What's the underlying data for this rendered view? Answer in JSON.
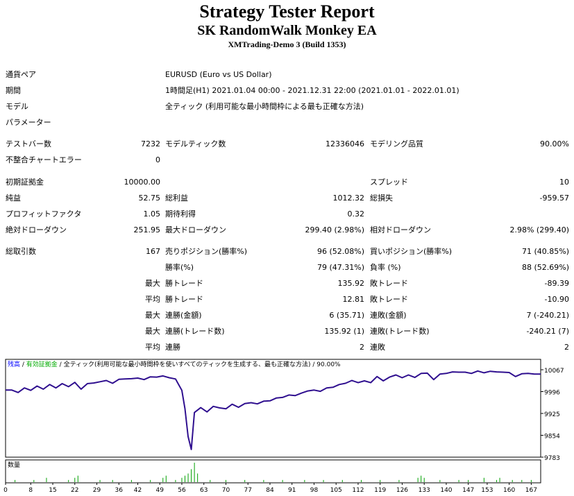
{
  "report": {
    "title": "Strategy Tester Report",
    "ea_name": "SK RandomWalk Monkey EA",
    "server": "XMTrading-Demo 3 (Build 1353)"
  },
  "settings": {
    "symbol_label": "通貨ペア",
    "symbol_value": "EURUSD (Euro vs US Dollar)",
    "period_label": "期間",
    "period_value": "1時間足(H1) 2021.01.04 00:00 - 2021.12.31 22:00 (2021.01.01 - 2022.01.01)",
    "model_label": "モデル",
    "model_value": "全ティック (利用可能な最小時間枠による最も正確な方法)",
    "params_label": "パラメーター"
  },
  "stats": {
    "bars_label": "テストバー数",
    "bars_value": "7232",
    "ticks_label": "モデルティック数",
    "ticks_value": "12336046",
    "quality_label": "モデリング品質",
    "quality_value": "90.00%",
    "mismatch_label": "不整合チャートエラー",
    "mismatch_value": "0",
    "deposit_label": "初期証拠金",
    "deposit_value": "10000.00",
    "spread_label": "スプレッド",
    "spread_value": "10",
    "net_label": "純益",
    "net_value": "52.75",
    "gross_profit_label": "総利益",
    "gross_profit_value": "1012.32",
    "gross_loss_label": "総損失",
    "gross_loss_value": "-959.57",
    "pf_label": "プロフィットファクタ",
    "pf_value": "1.05",
    "expected_label": "期待利得",
    "expected_value": "0.32",
    "abs_dd_label": "絶対ドローダウン",
    "abs_dd_value": "251.95",
    "max_dd_label": "最大ドローダウン",
    "max_dd_value": "299.40 (2.98%)",
    "rel_dd_label": "相対ドローダウン",
    "rel_dd_value": "2.98% (299.40)",
    "trades_label": "総取引数",
    "trades_value": "167",
    "short_label": "売りポジション(勝率%)",
    "short_value": "96 (52.08%)",
    "long_label": "買いポジション(勝率%)",
    "long_value": "71 (40.85%)",
    "winrate_label": "勝率(%)",
    "winrate_value": "79 (47.31%)",
    "lossrate_label": "負率 (%)",
    "lossrate_value": "88 (52.69%)",
    "max_word": "最大",
    "avg_word": "平均",
    "largest_win_label": "勝トレード",
    "largest_win_value": "135.92",
    "largest_loss_label": "敗トレード",
    "largest_loss_value": "-89.39",
    "avg_win_label": "勝トレード",
    "avg_win_value": "12.81",
    "avg_loss_label": "敗トレード",
    "avg_loss_value": "-10.90",
    "consec_wins_label": "連勝(金額)",
    "consec_wins_value": "6 (35.71)",
    "consec_losses_label": "連敗(金額)",
    "consec_losses_value": "7 (-240.21)",
    "consec_profit_label": "連勝(トレード数)",
    "consec_profit_value": "135.92 (1)",
    "consec_loss_label": "連敗(トレード数)",
    "consec_loss_value": "-240.21 (7)",
    "avg_consec_wins_label": "連勝",
    "avg_consec_wins_value": "2",
    "avg_consec_losses_label": "連敗",
    "avg_consec_losses_value": "2"
  },
  "chart_data": {
    "type": "line",
    "legend": [
      {
        "text": "残高",
        "color": "#0000ff"
      },
      {
        "text": "有効証拠金",
        "color": "#00aa00"
      },
      {
        "text": "全ティック(利用可能な最小時間枠を使いすべてのティックを生成する、最も正確な方法)",
        "color": "#000000"
      },
      {
        "text": "90.00%",
        "color": "#000000"
      }
    ],
    "ylim": [
      9783,
      10067
    ],
    "y_ticks": [
      "10067",
      "9996",
      "9925",
      "9854",
      "9783"
    ],
    "x_ticks": [
      "0",
      "8",
      "15",
      "22",
      "29",
      "36",
      "42",
      "49",
      "56",
      "63",
      "70",
      "77",
      "84",
      "91",
      "98",
      "105",
      "112",
      "119",
      "126",
      "133",
      "140",
      "147",
      "153",
      "160",
      "167"
    ],
    "xlim": [
      0,
      170
    ],
    "series_color": "#2f0f8f",
    "x": [
      0,
      2,
      4,
      6,
      8,
      10,
      12,
      14,
      16,
      18,
      20,
      22,
      24,
      26,
      28,
      30,
      32,
      34,
      36,
      38,
      40,
      42,
      44,
      46,
      48,
      50,
      52,
      54,
      56,
      57,
      58,
      59,
      60,
      62,
      64,
      66,
      68,
      70,
      72,
      74,
      76,
      78,
      80,
      82,
      84,
      86,
      88,
      90,
      92,
      94,
      96,
      98,
      100,
      102,
      104,
      106,
      108,
      110,
      112,
      114,
      116,
      118,
      120,
      122,
      124,
      126,
      128,
      130,
      132,
      134,
      136,
      138,
      140,
      142,
      144,
      146,
      148,
      150,
      152,
      154,
      156,
      158,
      160,
      162,
      164,
      166,
      168,
      170
    ],
    "y": [
      10001,
      10001,
      9993,
      10008,
      10000,
      10014,
      10004,
      10019,
      10008,
      10022,
      10012,
      10026,
      10004,
      10022,
      10024,
      10028,
      10032,
      10023,
      10036,
      10037,
      10038,
      10040,
      10035,
      10044,
      10043,
      10047,
      10041,
      10037,
      10000,
      9940,
      9850,
      9808,
      9928,
      9944,
      9930,
      9948,
      9943,
      9940,
      9955,
      9945,
      9957,
      9960,
      9956,
      9965,
      9966,
      9975,
      9977,
      9985,
      9983,
      9991,
      9998,
      10001,
      9997,
      10008,
      10010,
      10019,
      10023,
      10032,
      10025,
      10031,
      10025,
      10045,
      10031,
      10043,
      10050,
      10041,
      10050,
      10042,
      10055,
      10056,
      10035,
      10053,
      10055,
      10060,
      10059,
      10059,
      10055,
      10063,
      10057,
      10062,
      10060,
      10059,
      10058,
      10045,
      10054,
      10055,
      10053,
      10053
    ],
    "volume_label": "数量",
    "volume_color": "#00a000",
    "volumes": [
      {
        "x": 3,
        "v": 1
      },
      {
        "x": 9,
        "v": 1
      },
      {
        "x": 13,
        "v": 2
      },
      {
        "x": 20,
        "v": 1
      },
      {
        "x": 22,
        "v": 2
      },
      {
        "x": 23,
        "v": 3
      },
      {
        "x": 30,
        "v": 1
      },
      {
        "x": 34,
        "v": 1
      },
      {
        "x": 40,
        "v": 1
      },
      {
        "x": 46,
        "v": 1
      },
      {
        "x": 50,
        "v": 2
      },
      {
        "x": 51,
        "v": 3
      },
      {
        "x": 54,
        "v": 1
      },
      {
        "x": 56,
        "v": 2
      },
      {
        "x": 57,
        "v": 3
      },
      {
        "x": 58,
        "v": 4
      },
      {
        "x": 59,
        "v": 6
      },
      {
        "x": 60,
        "v": 9
      },
      {
        "x": 61,
        "v": 4
      },
      {
        "x": 65,
        "v": 1
      },
      {
        "x": 70,
        "v": 1
      },
      {
        "x": 76,
        "v": 1
      },
      {
        "x": 82,
        "v": 1
      },
      {
        "x": 88,
        "v": 1
      },
      {
        "x": 95,
        "v": 1
      },
      {
        "x": 101,
        "v": 1
      },
      {
        "x": 107,
        "v": 1
      },
      {
        "x": 113,
        "v": 1
      },
      {
        "x": 119,
        "v": 1
      },
      {
        "x": 125,
        "v": 1
      },
      {
        "x": 131,
        "v": 2
      },
      {
        "x": 132,
        "v": 3
      },
      {
        "x": 133,
        "v": 2
      },
      {
        "x": 138,
        "v": 1
      },
      {
        "x": 144,
        "v": 1
      },
      {
        "x": 147,
        "v": 1
      },
      {
        "x": 152,
        "v": 2
      },
      {
        "x": 156,
        "v": 1
      },
      {
        "x": 157,
        "v": 2
      },
      {
        "x": 161,
        "v": 1
      },
      {
        "x": 164,
        "v": 1
      },
      {
        "x": 167,
        "v": 1
      }
    ]
  }
}
